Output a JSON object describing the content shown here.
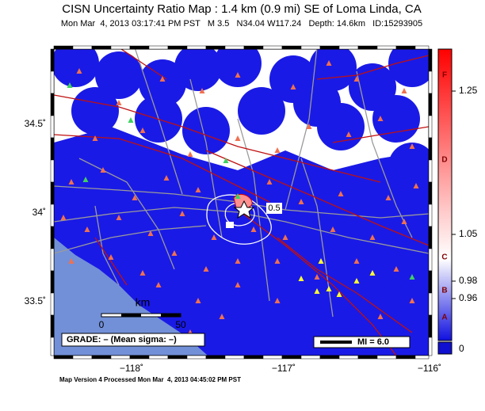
{
  "header": {
    "title": "CISN Uncertainty Ratio Map : 1.4 km (0.9 mi) SE of Loma Linda, CA",
    "subtitle": "Mon Mar  4, 2013 03:17:41 PM PST   M 3.5   N34.04 W117.24   Depth: 14.6km   ID:15293905"
  },
  "map": {
    "lat_labels": [
      "34.5˚",
      "34˚",
      "33.5˚"
    ],
    "lon_labels": [
      "−118˚",
      "−117˚",
      "−116˚"
    ],
    "scale_unit": "km",
    "scale_labels": [
      "0",
      "50"
    ],
    "grade_box": "GRADE: – (Mean sigma: –)",
    "mi_box": "MI = 6.0",
    "contour_label": "0.5"
  },
  "colorbar": {
    "grades": [
      "F",
      "D",
      "C",
      "B",
      "A"
    ],
    "tick_labels": [
      "1.25",
      "1.05",
      "0.98",
      "0.96",
      "0"
    ]
  },
  "footer": "Map Version 4 Processed Mon Mar  4, 2013 04:45:02 PM PST"
}
